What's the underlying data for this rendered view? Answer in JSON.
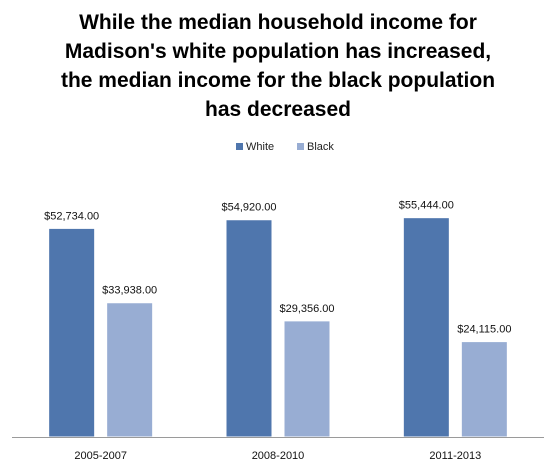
{
  "chart_data": {
    "type": "bar",
    "title_lines": [
      "While the median household income for",
      "Madison's white population has increased,",
      "the median income for the black population",
      "has decreased"
    ],
    "categories": [
      "2005-2007",
      "2008-2010",
      "2011-2013"
    ],
    "series": [
      {
        "name": "White",
        "color": "#4f76ad",
        "values": [
          52734,
          54920,
          55444
        ],
        "labels": [
          "$52,734.00",
          "$54,920.00",
          "$55,444.00"
        ]
      },
      {
        "name": "Black",
        "color": "#98add3",
        "values": [
          33938,
          29356,
          24115
        ],
        "labels": [
          "$33,938.00",
          "$29,356.00",
          "$24,115.00"
        ]
      }
    ],
    "ylim": [
      0,
      68000
    ],
    "grid": false,
    "legend_position": "top-center"
  }
}
